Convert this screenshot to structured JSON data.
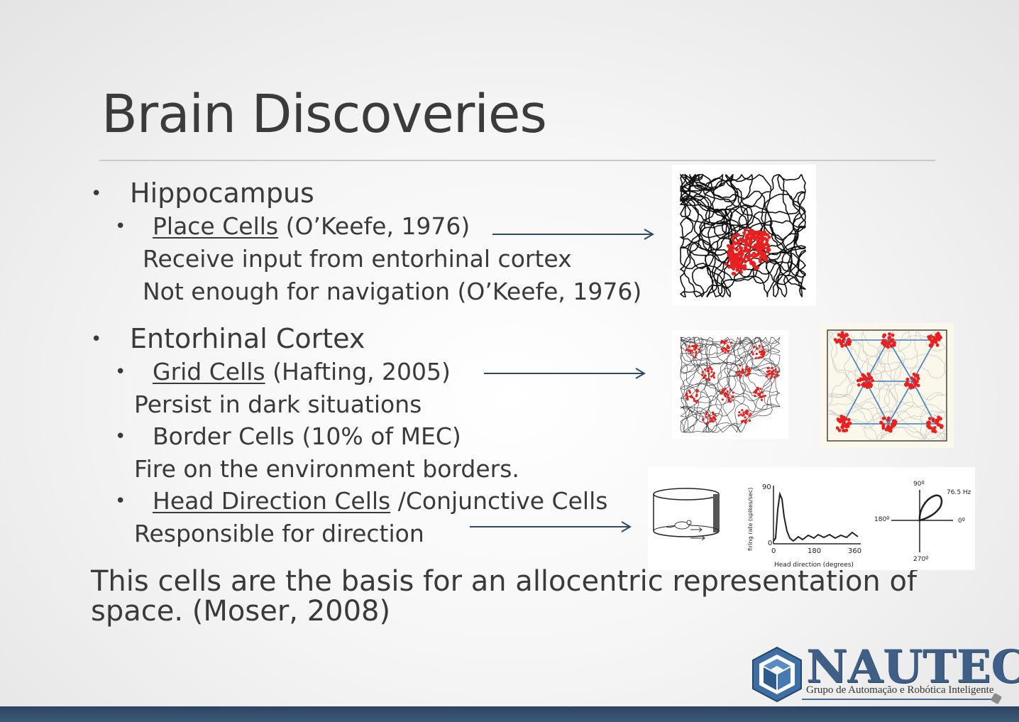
{
  "slide": {
    "title": "Brain Discoveries"
  },
  "sections": {
    "hippocampus": {
      "heading": "Hippocampus",
      "place_cells_label": "Place Cells",
      "place_cells_cite": " (O’Keefe, 1976)",
      "detail_1": "Receive input from entorhinal cortex",
      "detail_2": "Not enough for navigation (O’Keefe, 1976)"
    },
    "entorhinal": {
      "heading": "Entorhinal Cortex",
      "grid_cells_label": "Grid Cells",
      "grid_cells_cite": " (Hafting, 2005)",
      "grid_detail": "Persist in dark situations",
      "border_cells": "Border Cells (10% of MEC)",
      "border_detail": "Fire on the environment borders.",
      "hd_cells_label": "Head Direction Cells",
      "hd_cells_rest": " /Conjunctive Cells",
      "hd_detail": "Responsible for direction"
    }
  },
  "summary": {
    "line1": "This cells are the basis for an allocentric representation of",
    "line2": "space. (Moser, 2008)"
  },
  "figure_hd": {
    "y_axis_label": "firing rate (spikes/sec)",
    "y_max": "90",
    "y_min": "0",
    "x_ticks": [
      "0",
      "180",
      "360"
    ],
    "x_axis_label": "Head direction (degrees)",
    "polar_top": "90º",
    "polar_left": "180º",
    "polar_right": "0º",
    "polar_bottom": "270º",
    "polar_rate": "76.5 Hz"
  },
  "logo": {
    "name": "NAUTEC",
    "subtitle": "Grupo de Automação e Robótica Inteligente"
  },
  "colors": {
    "accent": "#3f5f86",
    "bottom_bar": "#34506d",
    "spike_red": "#e8201f",
    "arrow": "#2e4a66"
  }
}
